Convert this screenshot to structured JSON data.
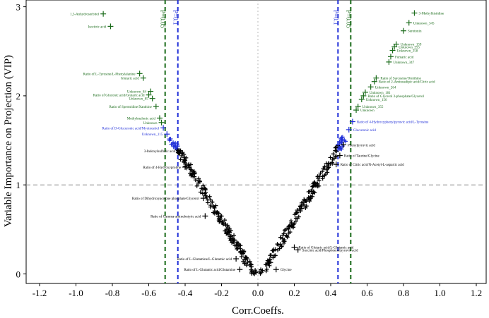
{
  "chart_data": {
    "type": "scatter",
    "xlabel": "Corr.Coeffs.",
    "ylabel": "Variable Importance on Projection (VIP)",
    "xlim": [
      -1.4,
      1.4
    ],
    "ylim": [
      0,
      3
    ],
    "x_ticks": [
      "-1.2",
      "-1.0",
      "-0.8",
      "-0.6",
      "-0.4",
      "-0.2",
      "0.0",
      "0.2",
      "0.4",
      "0.6",
      "0.8",
      "1.0",
      "1.2"
    ],
    "y_ticks": [
      "0",
      "1",
      "2",
      "3"
    ],
    "threshold_lines": [
      {
        "label": "P=0.05",
        "x": -0.51,
        "color": "#1a6b1a"
      },
      {
        "label": "P=0.1",
        "x": -0.44,
        "color": "#1f2ed8"
      },
      {
        "label": "P=0.1",
        "x": 0.44,
        "color": "#1f2ed8"
      },
      {
        "label": "P=0.05",
        "x": 0.51,
        "color": "#1a6b1a"
      }
    ],
    "vip_threshold": 1,
    "colors": {
      "significant_p005": "#1a6b1a",
      "significant_p01": "#1f2ed8",
      "not_significant": "#000000"
    },
    "labeled_points": [
      {
        "name": "1,5-Anhydrosorbitol",
        "x": -0.85,
        "y": 2.92,
        "group": "p005"
      },
      {
        "name": "Isocitric acid",
        "x": -0.81,
        "y": 2.78,
        "group": "p005"
      },
      {
        "name": "Ratio of L-Tyrosine/L-Phenylalanine",
        "x": -0.65,
        "y": 2.25,
        "group": "p005"
      },
      {
        "name": "Glutaric acid",
        "x": -0.63,
        "y": 2.2,
        "group": "p005"
      },
      {
        "name": "Unknown_84",
        "x": -0.59,
        "y": 2.05,
        "group": "p005"
      },
      {
        "name": "Ratio of Gluconic acid/Glutaric acid",
        "x": -0.6,
        "y": 2.01,
        "group": "p005"
      },
      {
        "name": "Unknown_85",
        "x": -0.58,
        "y": 1.97,
        "group": "p005"
      },
      {
        "name": "Ratio of Spermidine/Xanthine",
        "x": -0.56,
        "y": 1.88,
        "group": "p005"
      },
      {
        "name": "Methylmalonic acid",
        "x": -0.54,
        "y": 1.75,
        "group": "p005"
      },
      {
        "name": "Unknown",
        "x": -0.53,
        "y": 1.7,
        "group": "p005"
      },
      {
        "name": "Ratio of D-Glucuronic acid/Myoinositol",
        "x": -0.52,
        "y": 1.64,
        "group": "p01"
      },
      {
        "name": "Unknown_115",
        "x": -0.5,
        "y": 1.57,
        "group": "p01"
      },
      {
        "name": "3-Methylhistidine",
        "x": 0.86,
        "y": 2.93,
        "group": "p005"
      },
      {
        "name": "Unknown_345",
        "x": 0.83,
        "y": 2.82,
        "group": "p005"
      },
      {
        "name": "Serotonin",
        "x": 0.8,
        "y": 2.73,
        "group": "p005"
      },
      {
        "name": "Unknown_159",
        "x": 0.76,
        "y": 2.58,
        "group": "p005"
      },
      {
        "name": "Unknown_255",
        "x": 0.75,
        "y": 2.55,
        "group": "p005"
      },
      {
        "name": "Unknown_258",
        "x": 0.74,
        "y": 2.51,
        "group": "p005"
      },
      {
        "name": "Fumaric acid",
        "x": 0.73,
        "y": 2.44,
        "group": "p005"
      },
      {
        "name": "Unknown_347",
        "x": 0.72,
        "y": 2.38,
        "group": "p005"
      },
      {
        "name": "Ratio of Sarcosine/Ornithine",
        "x": 0.65,
        "y": 2.2,
        "group": "p005"
      },
      {
        "name": "Ratio of 2-Aminoadipic acid/Citric acid",
        "x": 0.64,
        "y": 2.16,
        "group": "p005"
      },
      {
        "name": "Unknown_264",
        "x": 0.62,
        "y": 2.1,
        "group": "p005"
      },
      {
        "name": "Unknown_181",
        "x": 0.59,
        "y": 2.04,
        "group": "p005"
      },
      {
        "name": "Ratio of Glycerol 3-phosphate/Glycerol",
        "x": 0.58,
        "y": 2.0,
        "group": "p005"
      },
      {
        "name": "Unknown_156",
        "x": 0.57,
        "y": 1.96,
        "group": "p005"
      },
      {
        "name": "Unknown_355",
        "x": 0.55,
        "y": 1.88,
        "group": "p005"
      },
      {
        "name": "Unknown",
        "x": 0.54,
        "y": 1.84,
        "group": "p005"
      },
      {
        "name": "Ratio of 4-Hydroxyphenylpyruvic acid/L-Tyrosine",
        "x": 0.52,
        "y": 1.71,
        "group": "p01"
      },
      {
        "name": "Glucuronic acid",
        "x": 0.5,
        "y": 1.62,
        "group": "p01"
      },
      {
        "name": "Phenylpyruvic acid",
        "x": 0.47,
        "y": 1.45,
        "group": "other"
      },
      {
        "name": "Ratio of Taurine/Glycine",
        "x": 0.45,
        "y": 1.33,
        "group": "other"
      },
      {
        "name": "Ratio of Citric acid/N-Acetyl-L-aspartic acid",
        "x": 0.43,
        "y": 1.23,
        "group": "other"
      },
      {
        "name": "3-Indoxylsulfuric acid",
        "x": -0.43,
        "y": 1.38,
        "group": "other"
      },
      {
        "name": "Ratio of 4-Hydroxyproline",
        "x": -0.4,
        "y": 1.2,
        "group": "other"
      },
      {
        "name": "Ratio of Dihydroxyacetone phosphate/Glycerol",
        "x": -0.3,
        "y": 0.85,
        "group": "other"
      },
      {
        "name": "Ratio of Gamma-aminobutyric acid",
        "x": -0.29,
        "y": 0.65,
        "group": "other"
      },
      {
        "name": "Ratio of L-Glutamine/L-Glutamic acid",
        "x": -0.12,
        "y": 0.17,
        "group": "other"
      },
      {
        "name": "Ratio of L-Glutamic acid/Glutamine",
        "x": -0.1,
        "y": 0.05,
        "group": "other"
      },
      {
        "name": "Ratio of Glutaric acid/L-Glutamic acid",
        "x": 0.2,
        "y": 0.3,
        "group": "other"
      },
      {
        "name": "Succinic acid/Phosphoenolpyruvic acid",
        "x": 0.22,
        "y": 0.27,
        "group": "other"
      },
      {
        "name": "Glycine",
        "x": 0.1,
        "y": 0.05,
        "group": "other"
      }
    ]
  }
}
